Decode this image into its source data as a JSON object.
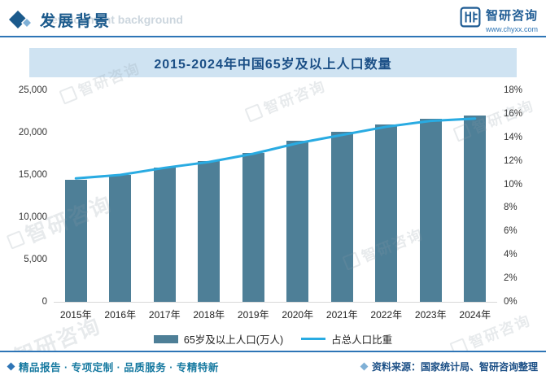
{
  "header": {
    "title": "发展背景",
    "background_text": "Development background",
    "brand": "智研咨询",
    "site": "www.chyxx.com"
  },
  "chart_data": {
    "type": "bar",
    "title": "2015-2024年中国65岁及以上人口数量",
    "categories": [
      "2015年",
      "2016年",
      "2017年",
      "2018年",
      "2019年",
      "2020年",
      "2021年",
      "2022年",
      "2023年",
      "2024年"
    ],
    "series": [
      {
        "name": "65岁及以上人口(万人)",
        "type": "bar",
        "axis": "left",
        "color": "#4e7f97",
        "values": [
          14400,
          15000,
          15830,
          16660,
          17600,
          19060,
          20060,
          20980,
          21680,
          22020
        ]
      },
      {
        "name": "占总人口比重",
        "type": "line",
        "axis": "right",
        "color": "#29abe2",
        "values": [
          10.5,
          10.8,
          11.4,
          11.9,
          12.6,
          13.5,
          14.2,
          14.9,
          15.4,
          15.6
        ]
      }
    ],
    "left_axis": {
      "min": 0,
      "max": 25000,
      "ticks": [
        "25,000",
        "20,000",
        "15,000",
        "10,000",
        "5,000",
        "0"
      ]
    },
    "right_axis": {
      "min": 0,
      "max": 18,
      "ticks": [
        "18%",
        "16%",
        "14%",
        "12%",
        "10%",
        "8%",
        "6%",
        "4%",
        "2%",
        "0%"
      ]
    },
    "grid": false,
    "legend_position": "bottom"
  },
  "footer": {
    "left": "精品报告 · 专项定制 · 品质服务 · 专精特新",
    "right": "资料来源：国家统计局、智研咨询整理"
  },
  "watermark": {
    "text": "智研咨询"
  },
  "colors": {
    "accent_blue": "#2e75b6",
    "title_text": "#1b5a8c",
    "title_bar_bg": "#cfe3f2",
    "bar": "#4e7f97",
    "line": "#29abe2",
    "footer_left_text": "#1679a0",
    "footer_right_text": "#1b4f86"
  }
}
